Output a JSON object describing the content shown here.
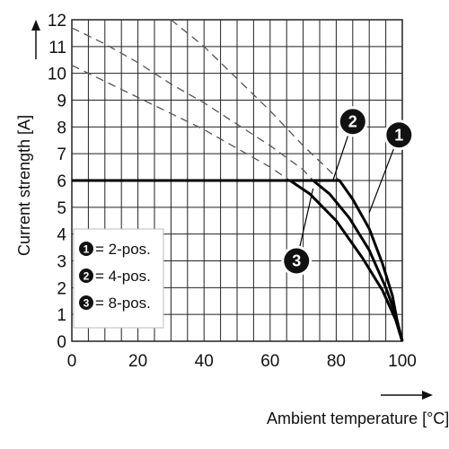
{
  "chart_data": {
    "type": "line",
    "xlabel": "Ambient temperature [°C]",
    "ylabel": "Current strength [A]",
    "xlim": [
      0,
      100
    ],
    "ylim": [
      0,
      12
    ],
    "x_ticks": [
      "0",
      "20",
      "40",
      "60",
      "80",
      "100"
    ],
    "y_ticks": [
      "0",
      "1",
      "2",
      "3",
      "4",
      "5",
      "6",
      "7",
      "8",
      "9",
      "10",
      "11",
      "12"
    ],
    "grid": true,
    "legend_position": "bottom-left",
    "legend": [
      {
        "marker": "1",
        "label": "= 2-pos."
      },
      {
        "marker": "2",
        "label": "= 4-pos."
      },
      {
        "marker": "3",
        "label": "= 8-pos."
      }
    ],
    "series": [
      {
        "marker": "1",
        "solid": [
          [
            0,
            6
          ],
          [
            81,
            6
          ],
          [
            85,
            5.3
          ],
          [
            90,
            4.2
          ],
          [
            94,
            2.9
          ],
          [
            97,
            1.7
          ],
          [
            99,
            0.4
          ],
          [
            100,
            0
          ]
        ],
        "dashed": [
          [
            30,
            12
          ],
          [
            40,
            11
          ],
          [
            50,
            9.8
          ],
          [
            60,
            8.6
          ],
          [
            70,
            7.3
          ],
          [
            76,
            6.6
          ],
          [
            81,
            6
          ]
        ]
      },
      {
        "marker": "2",
        "solid": [
          [
            0,
            6
          ],
          [
            73,
            6
          ],
          [
            78,
            5.5
          ],
          [
            84,
            4.6
          ],
          [
            90,
            3.4
          ],
          [
            95,
            2.0
          ],
          [
            98,
            1.0
          ],
          [
            100,
            0
          ]
        ],
        "dashed": [
          [
            0,
            11.7
          ],
          [
            10,
            11.1
          ],
          [
            20,
            10.4
          ],
          [
            30,
            9.6
          ],
          [
            40,
            8.9
          ],
          [
            50,
            8.1
          ],
          [
            60,
            7.3
          ],
          [
            70,
            6.4
          ],
          [
            73,
            6
          ]
        ]
      },
      {
        "marker": "3",
        "solid": [
          [
            0,
            6
          ],
          [
            66,
            6
          ],
          [
            72,
            5.5
          ],
          [
            80,
            4.5
          ],
          [
            88,
            3.1
          ],
          [
            94,
            1.9
          ],
          [
            98,
            0.8
          ],
          [
            100,
            0
          ]
        ],
        "dashed": [
          [
            0,
            10.3
          ],
          [
            10,
            9.7
          ],
          [
            20,
            9.1
          ],
          [
            30,
            8.5
          ],
          [
            40,
            7.9
          ],
          [
            50,
            7.2
          ],
          [
            60,
            6.5
          ],
          [
            66,
            6
          ]
        ]
      }
    ],
    "callouts": [
      {
        "marker": "1",
        "at": [
          99,
          7.7
        ],
        "points_to": [
          90,
          4.8
        ]
      },
      {
        "marker": "2",
        "at": [
          85,
          8.2
        ],
        "points_to": [
          79,
          6.0
        ]
      },
      {
        "marker": "3",
        "at": [
          68,
          3.0
        ],
        "points_to": [
          73,
          5.7
        ]
      }
    ]
  }
}
